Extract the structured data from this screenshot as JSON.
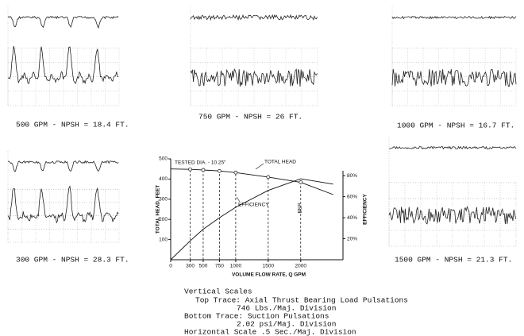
{
  "chart_data": {
    "type": "line",
    "xlabel": "VOLUME FLOW RATE, Q GPM",
    "ylabel": "TOTAL HEAD, FEET",
    "y2label": "EFFICIENCY",
    "annotations": [
      "TESTED DIA. - 10.25\"",
      "TOTAL HEAD",
      "EFFICIENCY",
      "BEP"
    ],
    "x": [
      0,
      300,
      500,
      750,
      1000,
      1500,
      2000,
      2500
    ],
    "series": [
      {
        "name": "TOTAL HEAD",
        "color": "#111111",
        "values": [
          450,
          448,
          445,
          440,
          432,
          410,
          384,
          323
        ]
      },
      {
        "name": "EFFICIENCY",
        "color": "#111111",
        "axis": "y2",
        "values": [
          0,
          18,
          29,
          40,
          50,
          66,
          77,
          72
        ]
      }
    ],
    "xlim": [
      0,
      2650
    ],
    "xticks": [
      0,
      300,
      500,
      750,
      1000,
      1500,
      2000
    ],
    "ylim": [
      0,
      500
    ],
    "yticks": [
      100,
      200,
      300,
      400,
      500
    ],
    "y2lim": [
      0,
      96
    ],
    "y2ticks": [
      {
        "value": 20,
        "label": "20%"
      },
      {
        "value": 40,
        "label": "40%"
      },
      {
        "value": 60,
        "label": "60%"
      },
      {
        "value": 80,
        "label": "80%"
      }
    ]
  },
  "panels": [
    {
      "caption": "500 GPM - NPSH = 18.4 FT."
    },
    {
      "caption": "750 GPM - NPSH = 26 FT."
    },
    {
      "caption": "1000 GPM - NPSH = 16.7 FT."
    },
    {
      "caption": "300 GPM - NPSH = 28.3 FT."
    },
    {
      "caption": "1500 GPM - NPSH = 21.3 FT."
    }
  ],
  "notes": [
    "Vertical Scales",
    "Top Trace:  Axial Thrust Bearing Load Pulsations",
    "746 Lbs./Maj. Division",
    "Bottom Trace:  Suction Pulsations",
    "2.02 psi/Maj. Division",
    "Horizontal Scale .5 Sec./Maj. Division"
  ]
}
